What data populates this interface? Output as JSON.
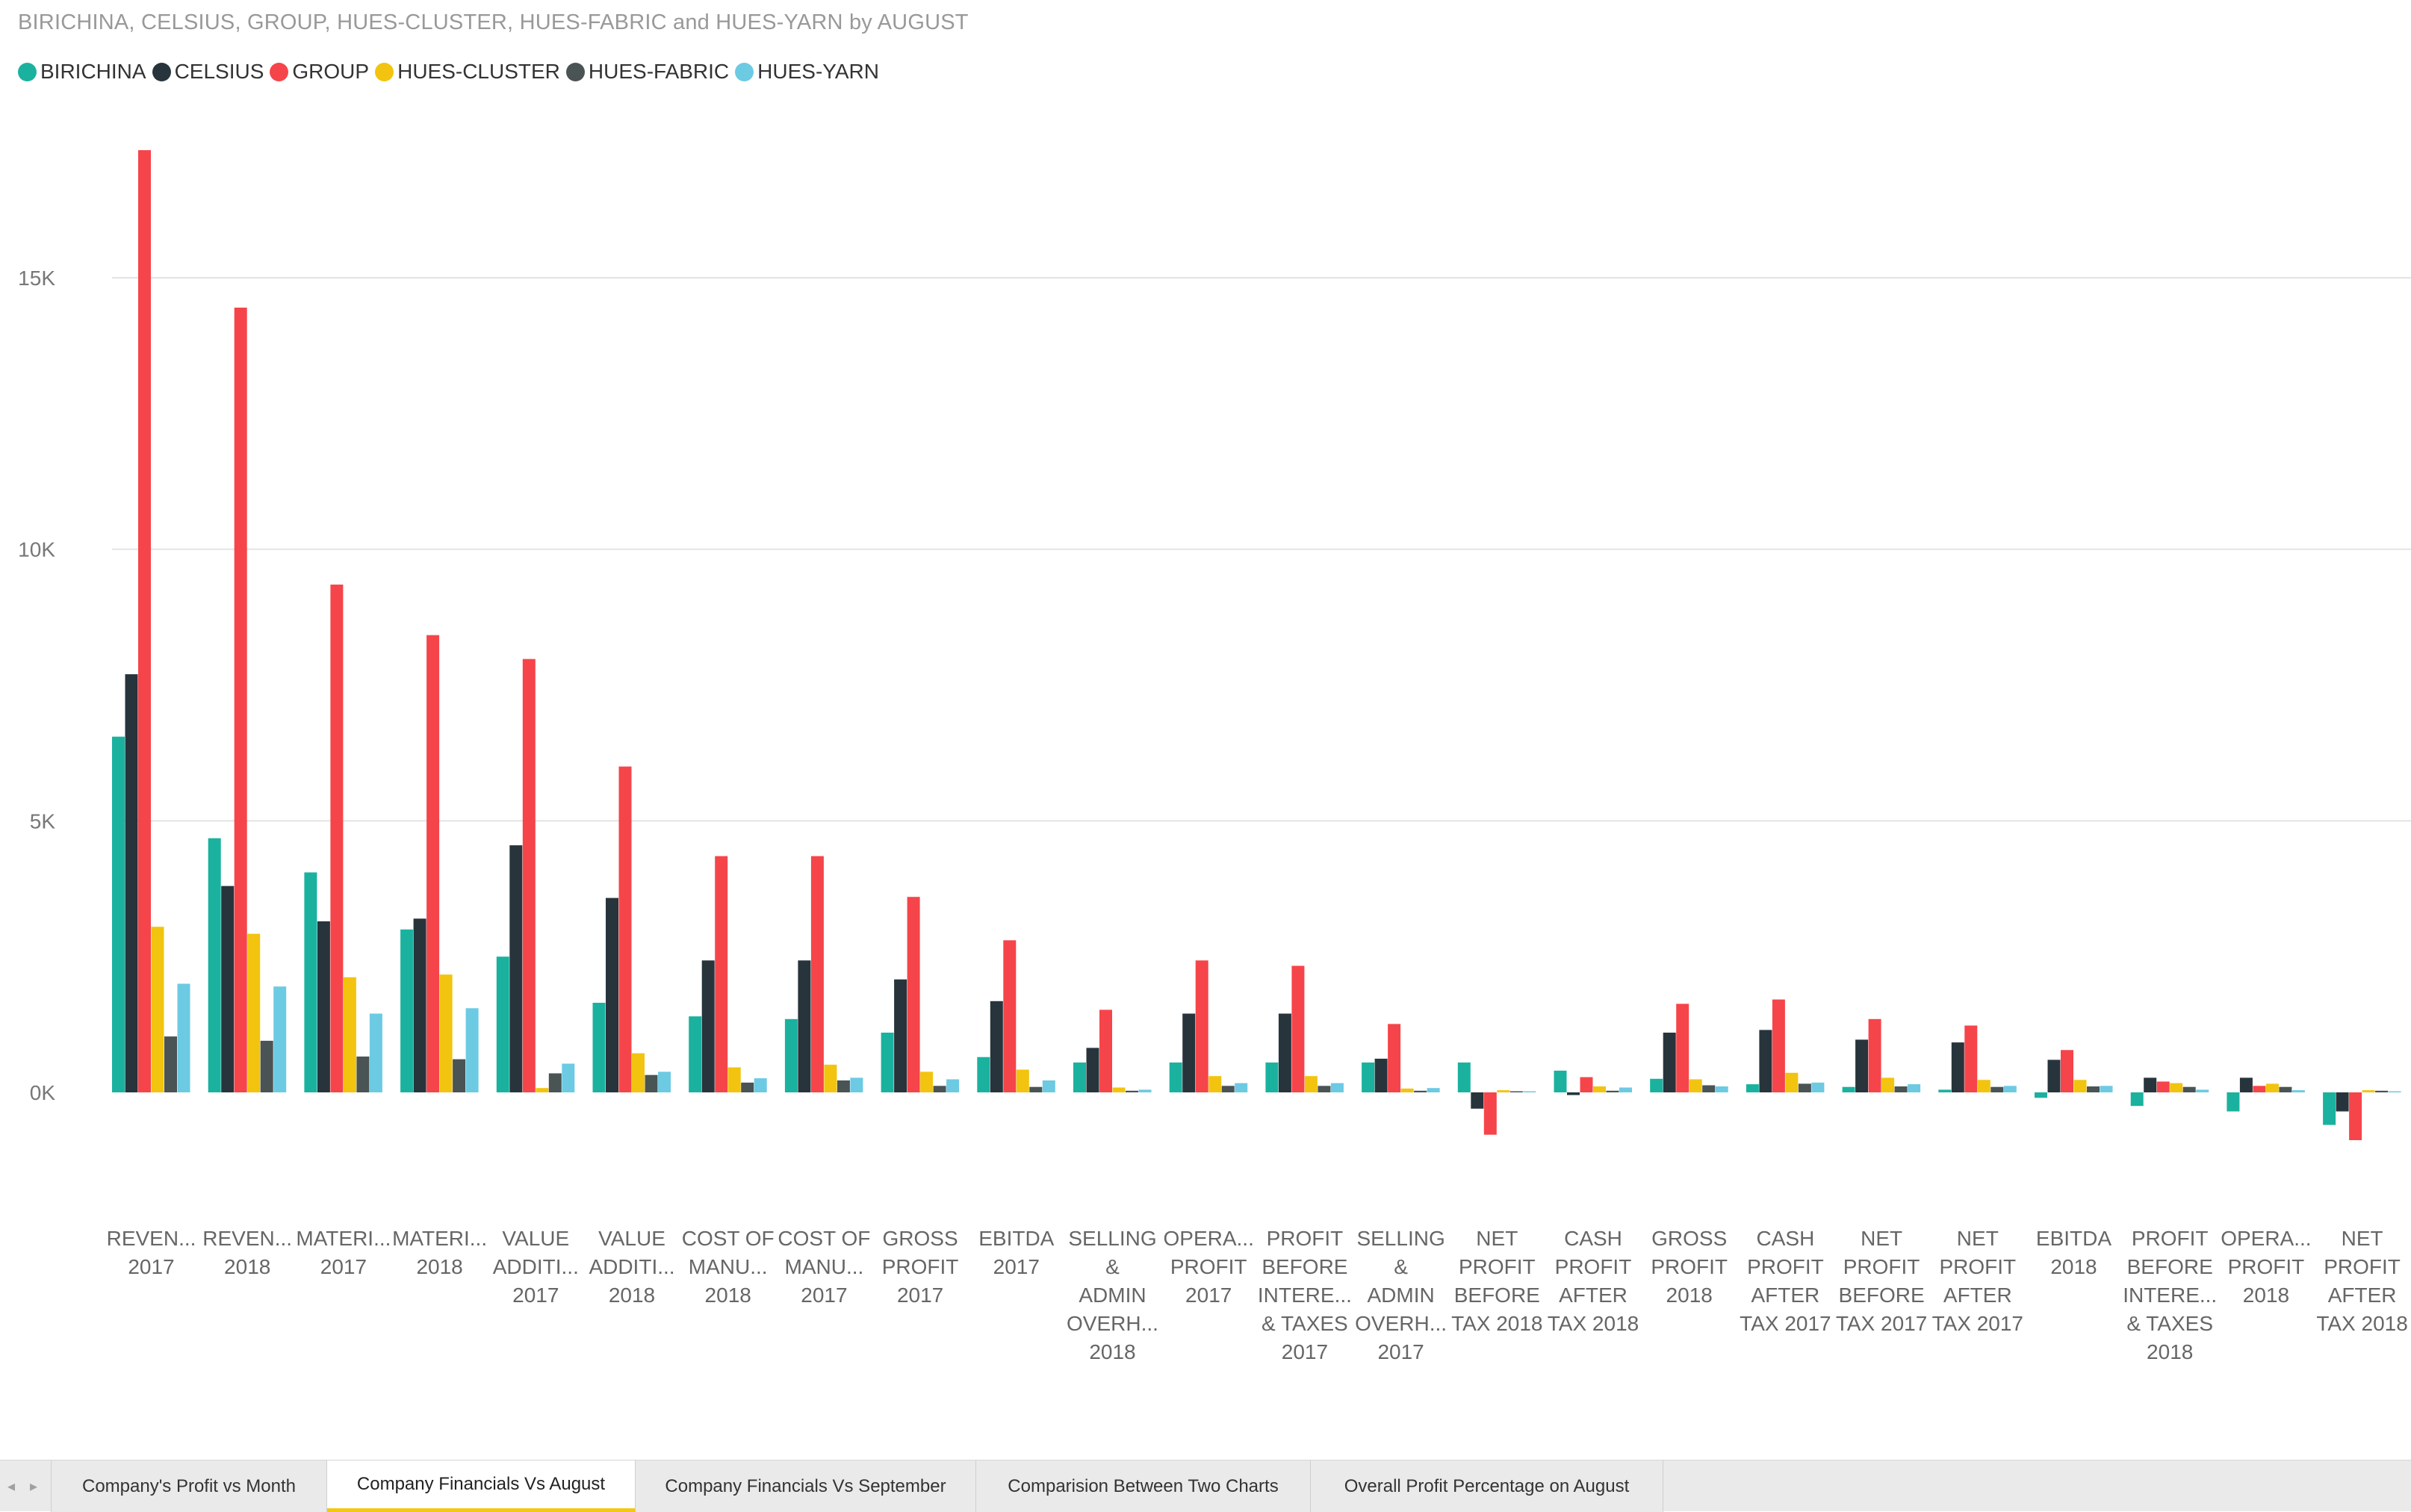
{
  "chart_title": "BIRICHINA, CELSIUS, GROUP, HUES-CLUSTER, HUES-FABRIC and HUES-YARN by AUGUST",
  "colors": {
    "BIRICHINA": "#1ab29f",
    "CELSIUS": "#27343c",
    "GROUP": "#f5454a",
    "HUES-CLUSTER": "#f2c40f",
    "HUES-FABRIC": "#4a5454",
    "HUES-YARN": "#6ccae3",
    "gridline": "#e3e3e3",
    "active_tab_underline": "#f2c811"
  },
  "chart_data": {
    "type": "bar",
    "title": "BIRICHINA, CELSIUS, GROUP, HUES-CLUSTER, HUES-FABRIC and HUES-YARN by AUGUST",
    "xlabel": "",
    "ylabel": "",
    "ylim": [
      -1000,
      17500
    ],
    "yticks": [
      0,
      5000,
      10000,
      15000
    ],
    "ytick_labels": [
      "0K",
      "5K",
      "10K",
      "15K"
    ],
    "grid": true,
    "legend_position": "top-left",
    "categories": [
      [
        "REVEN...",
        "2017"
      ],
      [
        "REVEN...",
        "2018"
      ],
      [
        "MATERI...",
        "2017"
      ],
      [
        "MATERI...",
        "2018"
      ],
      [
        "VALUE",
        "ADDITI...",
        "2017"
      ],
      [
        "VALUE",
        "ADDITI...",
        "2018"
      ],
      [
        "COST OF",
        "MANU...",
        "2018"
      ],
      [
        "COST OF",
        "MANU...",
        "2017"
      ],
      [
        "GROSS",
        "PROFIT",
        "2017"
      ],
      [
        "EBITDA",
        "2017"
      ],
      [
        "SELLING",
        "&",
        "ADMIN",
        "OVERH...",
        "2018"
      ],
      [
        "OPERA...",
        "PROFIT",
        "2017"
      ],
      [
        "PROFIT",
        "BEFORE",
        "INTERE...",
        "& TAXES",
        "2017"
      ],
      [
        "SELLING",
        "&",
        "ADMIN",
        "OVERH...",
        "2017"
      ],
      [
        "NET",
        "PROFIT",
        "BEFORE",
        "TAX 2018"
      ],
      [
        "CASH",
        "PROFIT",
        "AFTER",
        "TAX 2018"
      ],
      [
        "GROSS",
        "PROFIT",
        "2018"
      ],
      [
        "CASH",
        "PROFIT",
        "AFTER",
        "TAX 2017"
      ],
      [
        "NET",
        "PROFIT",
        "BEFORE",
        "TAX 2017"
      ],
      [
        "NET",
        "PROFIT",
        "AFTER",
        "TAX 2017"
      ],
      [
        "EBITDA",
        "2018"
      ],
      [
        "PROFIT",
        "BEFORE",
        "INTERE...",
        "& TAXES",
        "2018"
      ],
      [
        "OPERA...",
        "PROFIT",
        "2018"
      ],
      [
        "NET",
        "PROFIT",
        "AFTER",
        "TAX 2018"
      ]
    ],
    "series": [
      {
        "name": "BIRICHINA",
        "values": [
          6550,
          4680,
          4050,
          3000,
          2500,
          1650,
          1400,
          1350,
          1100,
          650,
          550,
          550,
          550,
          550,
          550,
          400,
          250,
          150,
          100,
          50,
          -100,
          -250,
          -350,
          -600
        ]
      },
      {
        "name": "CELSIUS",
        "values": [
          7700,
          3800,
          3150,
          3200,
          4550,
          3580,
          2430,
          2430,
          2080,
          1680,
          820,
          1450,
          1450,
          620,
          -300,
          -50,
          1100,
          1150,
          970,
          920,
          600,
          270,
          270,
          -350
        ]
      },
      {
        "name": "GROUP",
        "values": [
          17350,
          14450,
          9350,
          8420,
          7980,
          6000,
          4350,
          4350,
          3600,
          2800,
          1520,
          2430,
          2330,
          1260,
          -780,
          280,
          1630,
          1710,
          1350,
          1230,
          780,
          200,
          120,
          -880
        ]
      },
      {
        "name": "HUES-CLUSTER",
        "values": [
          3050,
          2920,
          2120,
          2170,
          80,
          720,
          460,
          510,
          380,
          420,
          90,
          300,
          300,
          70,
          40,
          110,
          240,
          360,
          270,
          230,
          230,
          170,
          160,
          40
        ]
      },
      {
        "name": "HUES-FABRIC",
        "values": [
          1030,
          950,
          660,
          610,
          350,
          320,
          180,
          220,
          120,
          100,
          30,
          120,
          120,
          30,
          20,
          30,
          130,
          160,
          110,
          100,
          110,
          100,
          100,
          30
        ]
      },
      {
        "name": "HUES-YARN",
        "values": [
          2000,
          1950,
          1450,
          1550,
          530,
          380,
          260,
          270,
          240,
          220,
          50,
          170,
          170,
          80,
          20,
          90,
          110,
          180,
          150,
          120,
          120,
          50,
          40,
          20
        ]
      }
    ]
  },
  "tabbar": {
    "prev_arrow": "◂",
    "next_arrow": "▸",
    "tabs": [
      {
        "label": "Company's Profit vs Month",
        "active": false
      },
      {
        "label": "Company Financials Vs August",
        "active": true
      },
      {
        "label": "Company Financials Vs September",
        "active": false
      },
      {
        "label": "Comparision Between Two Charts",
        "active": false
      },
      {
        "label": "Overall Profit Percentage on August",
        "active": false
      }
    ]
  }
}
